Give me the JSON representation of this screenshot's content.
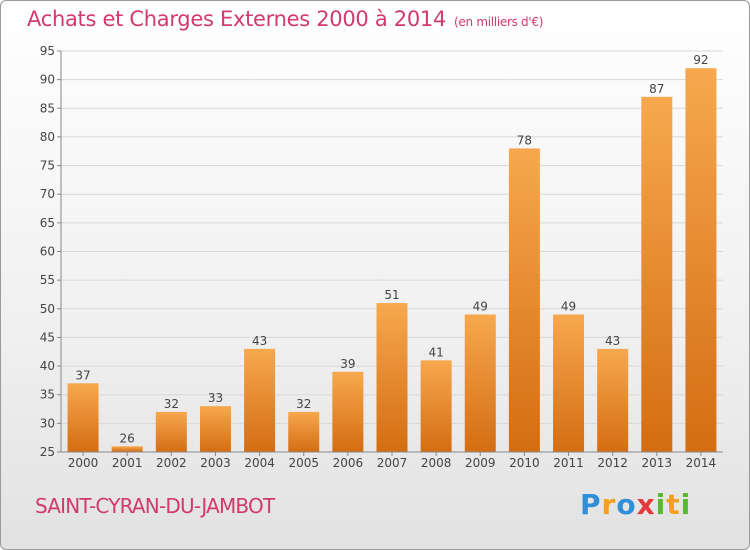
{
  "header": {
    "title": "Achats et Charges Externes 2000 à 2014",
    "unit": "(en milliers d'€)"
  },
  "footer": {
    "city": "SAINT-CYRAN-DU-JAMBOT",
    "logo_text": "Proxiti"
  },
  "colors": {
    "accent": "#d23a6a",
    "bar_top": "#f7a84e",
    "bar_bottom": "#d46d12",
    "grid": "#d8d8d8"
  },
  "chart_data": {
    "type": "bar",
    "categories": [
      "2000",
      "2001",
      "2002",
      "2003",
      "2004",
      "2005",
      "2006",
      "2007",
      "2008",
      "2009",
      "2010",
      "2011",
      "2012",
      "2013",
      "2014"
    ],
    "values": [
      37,
      26,
      32,
      33,
      43,
      32,
      39,
      51,
      41,
      49,
      78,
      49,
      43,
      87,
      92
    ],
    "ylim": [
      25,
      95
    ],
    "yticks": [
      25,
      30,
      35,
      40,
      45,
      50,
      55,
      60,
      65,
      70,
      75,
      80,
      85,
      90,
      95
    ],
    "grid": true,
    "data_labels": true
  }
}
